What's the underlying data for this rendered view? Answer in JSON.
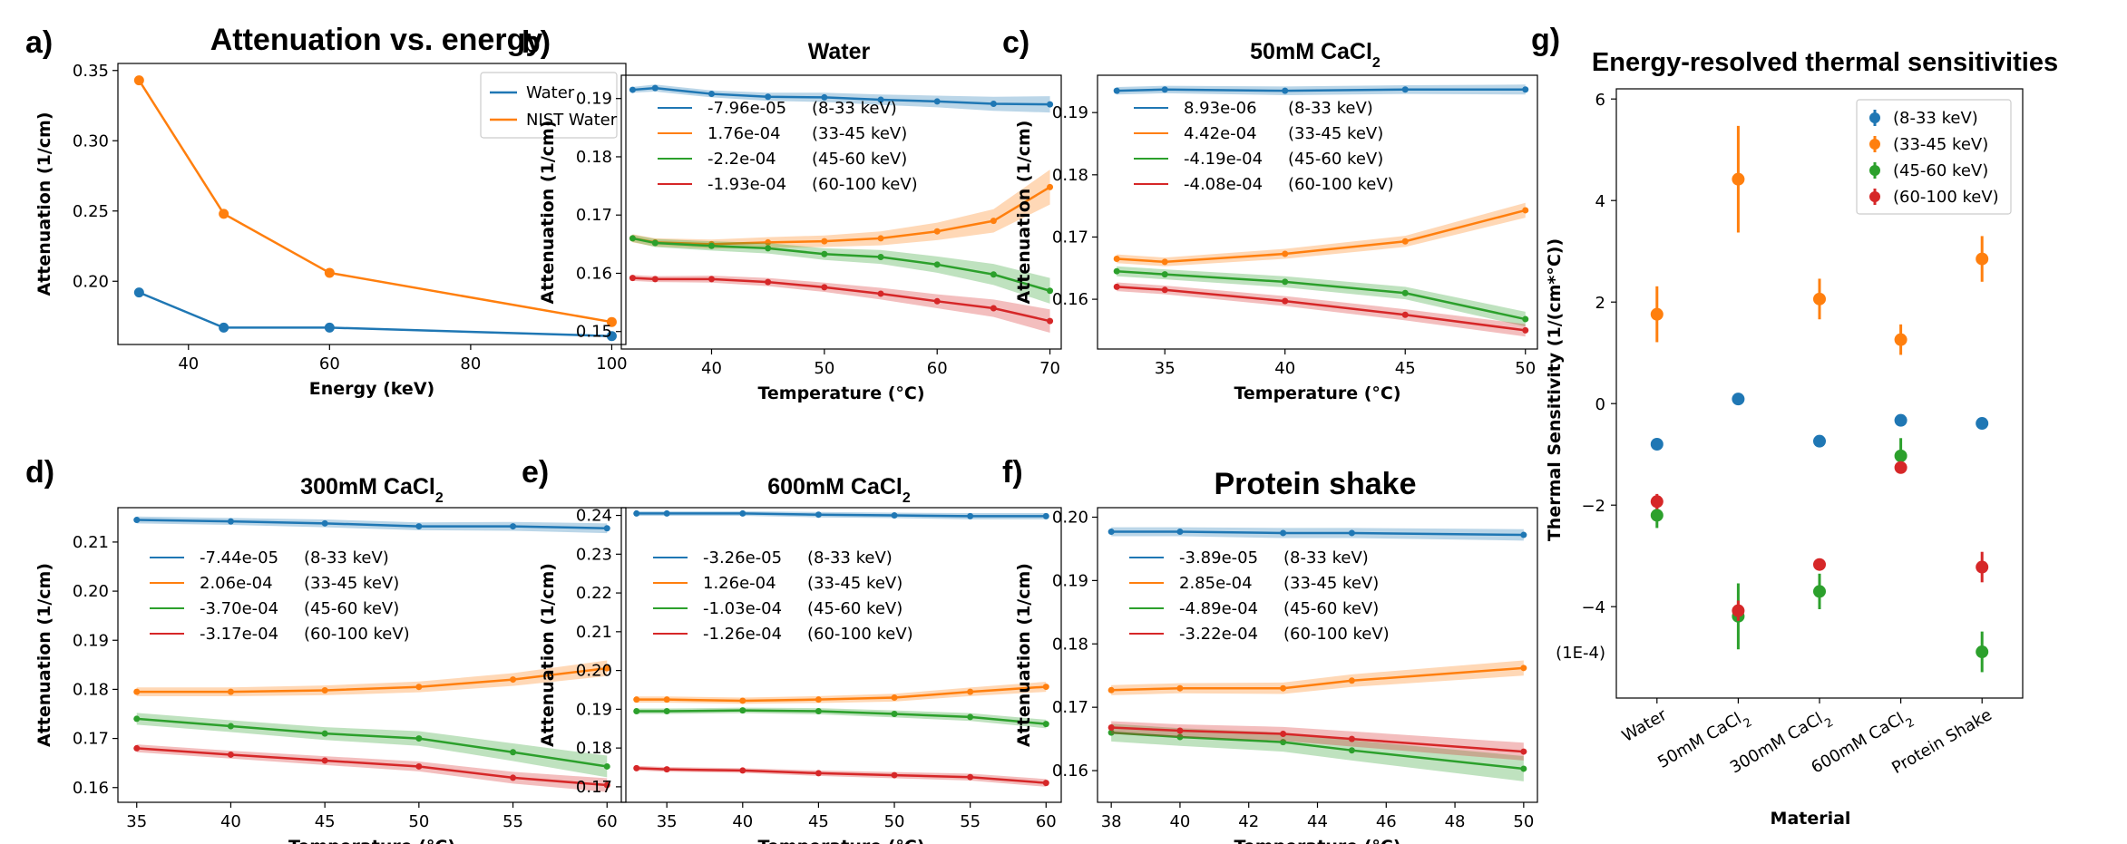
{
  "chart_data": [
    {
      "panel": "a)",
      "type": "line",
      "title": "Attenuation vs. energy",
      "xlabel": "Energy (keV)",
      "ylabel": "Attenuation (1/cm)",
      "xlim": [
        30,
        102
      ],
      "ylim": [
        0.155,
        0.355
      ],
      "xticks": [
        40,
        60,
        80,
        100
      ],
      "yticks": [
        0.2,
        0.25,
        0.3,
        0.35
      ],
      "ytick_labels": [
        "0.20",
        "0.25",
        "0.30",
        "0.35"
      ],
      "legend_position": "top-right",
      "series": [
        {
          "name": "Water",
          "color": "#1f77b4",
          "x": [
            33,
            45,
            60,
            100
          ],
          "y": [
            0.192,
            0.167,
            0.167,
            0.161
          ]
        },
        {
          "name": "NIST Water",
          "color": "#ff7f0e",
          "x": [
            33,
            45,
            60,
            100
          ],
          "y": [
            0.343,
            0.248,
            0.206,
            0.171
          ]
        }
      ]
    },
    {
      "panel": "b)",
      "type": "line",
      "title": "Water",
      "title_sub": "",
      "xlabel": "Temperature (°C)",
      "ylabel": "Attenuation (1/cm)",
      "xlim": [
        32,
        71
      ],
      "ylim": [
        0.147,
        0.194
      ],
      "xticks": [
        40,
        50,
        60,
        70
      ],
      "yticks": [
        0.15,
        0.16,
        0.17,
        0.18,
        0.19
      ],
      "ytick_labels": [
        "0.15",
        "0.16",
        "0.17",
        "0.18",
        "0.19"
      ],
      "legend_position": "upper-left",
      "series": [
        {
          "name": "-7.96e-05",
          "range": "(8-33 keV)",
          "color": "#1f77b4",
          "x": [
            33,
            35,
            40,
            45,
            50,
            55,
            60,
            65,
            70
          ],
          "y": [
            0.1915,
            0.1918,
            0.1908,
            0.1903,
            0.1902,
            0.1898,
            0.1895,
            0.1891,
            0.189
          ],
          "band": [
            0.0005,
            0.0006,
            0.0006,
            0.0007,
            0.0008,
            0.0009,
            0.001,
            0.0012,
            0.0014
          ]
        },
        {
          "name": "1.76e-04",
          "range": "(33-45 keV)",
          "color": "#ff7f0e",
          "x": [
            33,
            35,
            40,
            45,
            50,
            55,
            60,
            65,
            70
          ],
          "y": [
            0.166,
            0.1653,
            0.165,
            0.1653,
            0.1655,
            0.166,
            0.1672,
            0.169,
            0.1748
          ],
          "band": [
            0.0007,
            0.0007,
            0.0008,
            0.0009,
            0.001,
            0.0012,
            0.0015,
            0.002,
            0.003
          ]
        },
        {
          "name": "-2.2e-04",
          "range": "(45-60 keV)",
          "color": "#2ca02c",
          "x": [
            33,
            35,
            40,
            45,
            50,
            55,
            60,
            65,
            70
          ],
          "y": [
            0.166,
            0.1652,
            0.1647,
            0.1643,
            0.1633,
            0.1628,
            0.1615,
            0.1598,
            0.157
          ],
          "band": [
            0.0006,
            0.0007,
            0.0008,
            0.0009,
            0.001,
            0.0012,
            0.0014,
            0.0018,
            0.0022
          ]
        },
        {
          "name": "-1.93e-04",
          "range": "(60-100 keV)",
          "color": "#d62728",
          "x": [
            33,
            35,
            40,
            45,
            50,
            55,
            60,
            65,
            70
          ],
          "y": [
            0.1592,
            0.159,
            0.159,
            0.1585,
            0.1576,
            0.1565,
            0.1552,
            0.154,
            0.1518
          ],
          "band": [
            0.0005,
            0.0005,
            0.0006,
            0.0007,
            0.0008,
            0.001,
            0.0012,
            0.0015,
            0.002
          ]
        }
      ]
    },
    {
      "panel": "c)",
      "type": "line",
      "title": "50mM CaCl",
      "title_sub": "2",
      "xlabel": "Temperature (°C)",
      "ylabel": "Attenuation (1/cm)",
      "xlim": [
        32.2,
        50.5
      ],
      "ylim": [
        0.152,
        0.196
      ],
      "xticks": [
        35,
        40,
        45,
        50
      ],
      "yticks": [
        0.16,
        0.17,
        0.18,
        0.19
      ],
      "ytick_labels": [
        "0.16",
        "0.17",
        "0.18",
        "0.19"
      ],
      "legend_position": "upper-left",
      "series": [
        {
          "name": "8.93e-06",
          "range": "(8-33 keV)",
          "color": "#1f77b4",
          "x": [
            33,
            35,
            40,
            45,
            50
          ],
          "y": [
            0.1935,
            0.1937,
            0.1935,
            0.1937,
            0.1937
          ],
          "band": [
            0.0006,
            0.0006,
            0.0007,
            0.0007,
            0.0008
          ]
        },
        {
          "name": "4.42e-04",
          "range": "(33-45 keV)",
          "color": "#ff7f0e",
          "x": [
            33,
            35,
            40,
            45,
            50
          ],
          "y": [
            0.1665,
            0.166,
            0.1673,
            0.1693,
            0.1743
          ],
          "band": [
            0.0007,
            0.0007,
            0.0008,
            0.0009,
            0.0012
          ]
        },
        {
          "name": "-4.19e-04",
          "range": "(45-60 keV)",
          "color": "#2ca02c",
          "x": [
            33,
            35,
            40,
            45,
            50
          ],
          "y": [
            0.1645,
            0.164,
            0.1628,
            0.161,
            0.1568
          ],
          "band": [
            0.0008,
            0.0008,
            0.0009,
            0.001,
            0.0012
          ]
        },
        {
          "name": "-4.08e-04",
          "range": "(60-100 keV)",
          "color": "#d62728",
          "x": [
            33,
            35,
            40,
            45,
            50
          ],
          "y": [
            0.162,
            0.1615,
            0.1597,
            0.1575,
            0.155
          ],
          "band": [
            0.0007,
            0.0007,
            0.0008,
            0.0009,
            0.001
          ]
        }
      ]
    },
    {
      "panel": "d)",
      "type": "line",
      "title": "300mM CaCl",
      "title_sub": "2",
      "xlabel": "Temperature (°C)",
      "ylabel": "Attenuation (1/cm)",
      "xlim": [
        34,
        61
      ],
      "ylim": [
        0.157,
        0.217
      ],
      "xticks": [
        35,
        40,
        45,
        50,
        55,
        60
      ],
      "yticks": [
        0.16,
        0.17,
        0.18,
        0.19,
        0.2,
        0.21
      ],
      "ytick_labels": [
        "0.16",
        "0.17",
        "0.18",
        "0.19",
        "0.20",
        "0.21"
      ],
      "legend_position": "upper-left",
      "series": [
        {
          "name": "-7.44e-05",
          "range": "(8-33 keV)",
          "color": "#1f77b4",
          "x": [
            35,
            40,
            45,
            50,
            55,
            60
          ],
          "y": [
            0.2145,
            0.2142,
            0.2138,
            0.2132,
            0.2132,
            0.2128
          ],
          "band": [
            0.0007,
            0.0007,
            0.0008,
            0.0008,
            0.0009,
            0.001
          ]
        },
        {
          "name": "2.06e-04",
          "range": "(33-45 keV)",
          "color": "#ff7f0e",
          "x": [
            35,
            40,
            45,
            50,
            55,
            60
          ],
          "y": [
            0.1795,
            0.1795,
            0.1798,
            0.1805,
            0.182,
            0.1843
          ],
          "band": [
            0.0009,
            0.0009,
            0.001,
            0.0011,
            0.0013,
            0.0016
          ]
        },
        {
          "name": "-3.70e-04",
          "range": "(45-60 keV)",
          "color": "#2ca02c",
          "x": [
            35,
            40,
            45,
            50,
            55,
            60
          ],
          "y": [
            0.174,
            0.1725,
            0.171,
            0.17,
            0.1672,
            0.1643
          ],
          "band": [
            0.0012,
            0.0012,
            0.0013,
            0.0015,
            0.0018,
            0.0022
          ]
        },
        {
          "name": "-3.17e-04",
          "range": "(60-100 keV)",
          "color": "#d62728",
          "x": [
            35,
            40,
            45,
            50,
            55,
            60
          ],
          "y": [
            0.168,
            0.1667,
            0.1655,
            0.1643,
            0.162,
            0.1605
          ],
          "band": [
            0.0008,
            0.0008,
            0.0009,
            0.001,
            0.0012,
            0.0014
          ]
        }
      ]
    },
    {
      "panel": "e)",
      "type": "line",
      "title": "600mM CaCl",
      "title_sub": "2",
      "xlabel": "Temperature (°C)",
      "ylabel": "Attenuation (1/cm)",
      "xlim": [
        32,
        61
      ],
      "ylim": [
        0.166,
        0.242
      ],
      "xticks": [
        35,
        40,
        45,
        50,
        55,
        60
      ],
      "yticks": [
        0.17,
        0.18,
        0.19,
        0.2,
        0.21,
        0.22,
        0.23,
        0.24
      ],
      "ytick_labels": [
        "0.17",
        "0.18",
        "0.19",
        "0.20",
        "0.21",
        "0.22",
        "0.23",
        "0.24"
      ],
      "legend_position": "upper-left",
      "series": [
        {
          "name": "-3.26e-05",
          "range": "(8-33 keV)",
          "color": "#1f77b4",
          "x": [
            33,
            35,
            40,
            45,
            50,
            55,
            60
          ],
          "y": [
            0.2405,
            0.2405,
            0.2405,
            0.2402,
            0.24,
            0.2398,
            0.2398
          ],
          "band": [
            0.0006,
            0.0006,
            0.0006,
            0.0007,
            0.0007,
            0.0008,
            0.0008
          ]
        },
        {
          "name": "1.26e-04",
          "range": "(33-45 keV)",
          "color": "#ff7f0e",
          "x": [
            33,
            35,
            40,
            45,
            50,
            55,
            60
          ],
          "y": [
            0.1925,
            0.1925,
            0.1922,
            0.1925,
            0.193,
            0.1945,
            0.1958
          ],
          "band": [
            0.0008,
            0.0008,
            0.0008,
            0.0009,
            0.001,
            0.0011,
            0.0013
          ]
        },
        {
          "name": "-1.03e-04",
          "range": "(45-60 keV)",
          "color": "#2ca02c",
          "x": [
            33,
            35,
            40,
            45,
            50,
            55,
            60
          ],
          "y": [
            0.1895,
            0.1895,
            0.1897,
            0.1895,
            0.1888,
            0.188,
            0.1862
          ],
          "band": [
            0.0007,
            0.0007,
            0.0007,
            0.0008,
            0.0009,
            0.001,
            0.0011
          ]
        },
        {
          "name": "-1.26e-04",
          "range": "(60-100 keV)",
          "color": "#d62728",
          "x": [
            33,
            35,
            40,
            45,
            50,
            55,
            60
          ],
          "y": [
            0.1748,
            0.1745,
            0.1742,
            0.1735,
            0.173,
            0.1725,
            0.171
          ],
          "band": [
            0.0006,
            0.0006,
            0.0006,
            0.0007,
            0.0008,
            0.0009,
            0.001
          ]
        }
      ]
    },
    {
      "panel": "f)",
      "type": "line",
      "title": "Protein shake",
      "title_sub": "",
      "xlabel": "Temperature (°C)",
      "ylabel": "Attenuation (1/cm)",
      "xlim": [
        37.6,
        50.4
      ],
      "ylim": [
        0.155,
        0.2015
      ],
      "xticks": [
        38,
        40,
        42,
        44,
        46,
        48,
        50
      ],
      "yticks": [
        0.16,
        0.17,
        0.18,
        0.19,
        0.2
      ],
      "ytick_labels": [
        "0.16",
        "0.17",
        "0.18",
        "0.19",
        "0.20"
      ],
      "legend_position": "upper-left",
      "series": [
        {
          "name": "-3.89e-05",
          "range": "(8-33 keV)",
          "color": "#1f77b4",
          "x": [
            38,
            40,
            43,
            45,
            50
          ],
          "y": [
            0.1977,
            0.1977,
            0.1975,
            0.1975,
            0.1972
          ],
          "band": [
            0.0007,
            0.0007,
            0.0008,
            0.0008,
            0.0009
          ]
        },
        {
          "name": "2.85e-04",
          "range": "(33-45 keV)",
          "color": "#ff7f0e",
          "x": [
            38,
            40,
            43,
            45,
            50
          ],
          "y": [
            0.1727,
            0.173,
            0.173,
            0.1742,
            0.1762
          ],
          "band": [
            0.0008,
            0.0008,
            0.0009,
            0.001,
            0.0012
          ]
        },
        {
          "name": "-4.89e-04",
          "range": "(45-60 keV)",
          "color": "#2ca02c",
          "x": [
            38,
            40,
            43,
            45,
            50
          ],
          "y": [
            0.166,
            0.1653,
            0.1645,
            0.1632,
            0.1603
          ],
          "band": [
            0.0014,
            0.0014,
            0.0015,
            0.0016,
            0.002
          ]
        },
        {
          "name": "-3.22e-04",
          "range": "(60-100 keV)",
          "color": "#d62728",
          "x": [
            38,
            40,
            43,
            45,
            50
          ],
          "y": [
            0.1668,
            0.1663,
            0.1658,
            0.165,
            0.163
          ],
          "band": [
            0.001,
            0.001,
            0.0011,
            0.0012,
            0.0014
          ]
        }
      ]
    },
    {
      "panel": "g)",
      "type": "scatter",
      "title": "Energy-resolved thermal sensitivities",
      "xlabel": "Material",
      "ylabel": "Thermal Sensitivity (1/(cm*°C))",
      "y_unit_note": "(1E-4)",
      "ylim": [
        -5.8,
        6.2
      ],
      "yticks": [
        6,
        4,
        2,
        0,
        -2,
        -4
      ],
      "ytick_labels": [
        "6",
        "4",
        "2",
        "0",
        "−2",
        "−4"
      ],
      "legend_position": "top-right",
      "categories": [
        "Water",
        "50mM CaCl",
        "300mM CaCl",
        "600mM CaCl",
        "Protein Shake"
      ],
      "category_subs": [
        "",
        "2",
        "2",
        "2",
        ""
      ],
      "series": [
        {
          "name": "(8-33 keV)",
          "color": "#1f77b4",
          "values": [
            -0.8,
            0.09,
            -0.74,
            -0.33,
            -0.39
          ],
          "err": [
            0.05,
            0.05,
            0.05,
            0.05,
            0.05
          ]
        },
        {
          "name": "(33-45 keV)",
          "color": "#ff7f0e",
          "values": [
            1.76,
            4.42,
            2.06,
            1.26,
            2.85
          ],
          "err": [
            0.55,
            1.05,
            0.4,
            0.3,
            0.45
          ]
        },
        {
          "name": "(45-60 keV)",
          "color": "#2ca02c",
          "values": [
            -2.2,
            -4.19,
            -3.7,
            -1.03,
            -4.89
          ],
          "err": [
            0.25,
            0.65,
            0.35,
            0.35,
            0.4
          ]
        },
        {
          "name": "(60-100 keV)",
          "color": "#d62728",
          "values": [
            -1.93,
            -4.08,
            -3.17,
            -1.26,
            -3.22
          ],
          "err": [
            0.15,
            0.2,
            0.12,
            0.1,
            0.3
          ]
        }
      ]
    }
  ]
}
